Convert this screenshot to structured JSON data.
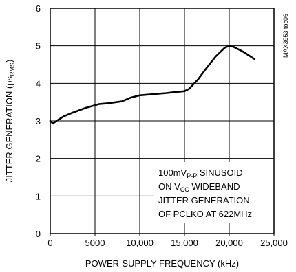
{
  "chart_data": {
    "type": "line",
    "xlabel": "POWER-SUPPLY FREQUENCY (kHz)",
    "ylabel": {
      "main": "JITTER GENERATION (ps",
      "sub": "RMS",
      "close": ")"
    },
    "xlim": [
      0,
      25000
    ],
    "ylim": [
      0,
      6
    ],
    "x_ticks": [
      0,
      5000,
      10000,
      15000,
      20000,
      25000
    ],
    "x_tick_labels": [
      "0",
      "5000",
      "10,000",
      "15,000",
      "20,000",
      "25,000"
    ],
    "y_ticks": [
      0,
      1,
      2,
      3,
      4,
      5,
      6
    ],
    "y_tick_labels": [
      "0",
      "1",
      "2",
      "3",
      "4",
      "5",
      "6"
    ],
    "grid": true,
    "figure_code": "MAX3953 toc06",
    "annotation": [
      {
        "parts": [
          {
            "t": "100mV"
          },
          {
            "t": "P-P",
            "sub": true
          },
          {
            "t": " SINUSOID"
          }
        ]
      },
      {
        "parts": [
          {
            "t": "ON V"
          },
          {
            "t": "CC",
            "sub": true
          },
          {
            "t": " WIDEBAND"
          }
        ]
      },
      {
        "parts": [
          {
            "t": "JITTER GENERATION"
          }
        ]
      },
      {
        "parts": [
          {
            "t": "OF PCLKO AT 622MHz"
          }
        ]
      }
    ],
    "series": [
      {
        "color": "#000000",
        "x": [
          0,
          300,
          700,
          1500,
          2500,
          4000,
          5500,
          6500,
          8000,
          9000,
          10000,
          11000,
          12000,
          13000,
          14000,
          15000,
          15500,
          16500,
          17500,
          18500,
          19500,
          20000,
          20500,
          21500,
          22800
        ],
        "y": [
          3.0,
          2.93,
          3.0,
          3.12,
          3.22,
          3.35,
          3.45,
          3.47,
          3.52,
          3.62,
          3.68,
          3.7,
          3.72,
          3.74,
          3.77,
          3.79,
          3.85,
          4.1,
          4.42,
          4.72,
          4.95,
          5.0,
          4.97,
          4.85,
          4.65
        ]
      }
    ]
  }
}
